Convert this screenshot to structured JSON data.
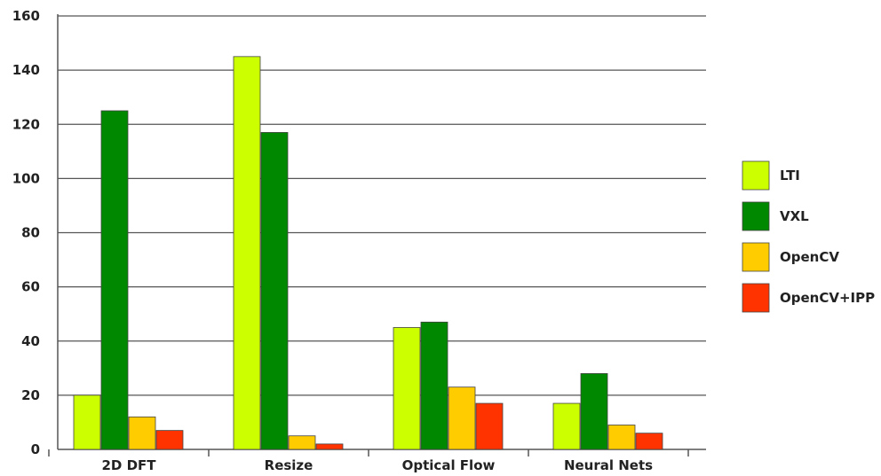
{
  "chart_data": {
    "type": "bar",
    "title": "",
    "xlabel": "",
    "ylabel": "",
    "ylim": [
      0,
      160
    ],
    "yticks": [
      0,
      20,
      40,
      60,
      80,
      100,
      120,
      140,
      160
    ],
    "grid": true,
    "legend_position": "right",
    "categories": [
      "2D DFT",
      "Resize",
      "Optical Flow",
      "Neural Nets"
    ],
    "series": [
      {
        "name": "LTI",
        "color": "#ccff00",
        "values": [
          20,
          145,
          45,
          17
        ]
      },
      {
        "name": "VXL",
        "color": "#008800",
        "values": [
          125,
          117,
          47,
          28
        ]
      },
      {
        "name": "OpenCV",
        "color": "#ffcc00",
        "values": [
          12,
          5,
          23,
          9
        ]
      },
      {
        "name": "OpenCV+IPP",
        "color": "#ff3300",
        "values": [
          7,
          2,
          17,
          6
        ]
      }
    ]
  }
}
